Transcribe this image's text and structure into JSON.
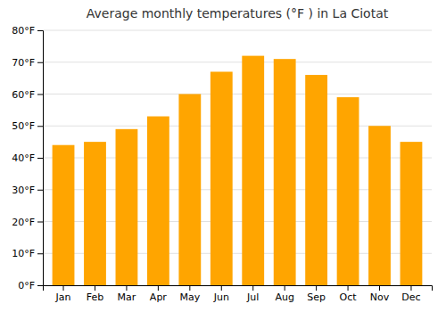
{
  "chart_data": {
    "type": "bar",
    "title": "Average monthly temperatures (°F ) in La Ciotat",
    "categories": [
      "Jan",
      "Feb",
      "Mar",
      "Apr",
      "May",
      "Jun",
      "Jul",
      "Aug",
      "Sep",
      "Oct",
      "Nov",
      "Dec"
    ],
    "values": [
      44,
      45,
      49,
      53,
      60,
      67,
      72,
      71,
      66,
      59,
      50,
      45
    ],
    "color": "#FFA500",
    "ylim": [
      0,
      80
    ],
    "yticks": [
      {
        "value": 0,
        "label": "0°F"
      },
      {
        "value": 10,
        "label": "10°F"
      },
      {
        "value": 20,
        "label": "20°F"
      },
      {
        "value": 30,
        "label": "30°F"
      },
      {
        "value": 40,
        "label": "40°F"
      },
      {
        "value": 50,
        "label": "50°F"
      },
      {
        "value": 60,
        "label": "60°F"
      },
      {
        "value": 70,
        "label": "70°F"
      },
      {
        "value": 80,
        "label": "80°F"
      }
    ],
    "grid": true
  }
}
